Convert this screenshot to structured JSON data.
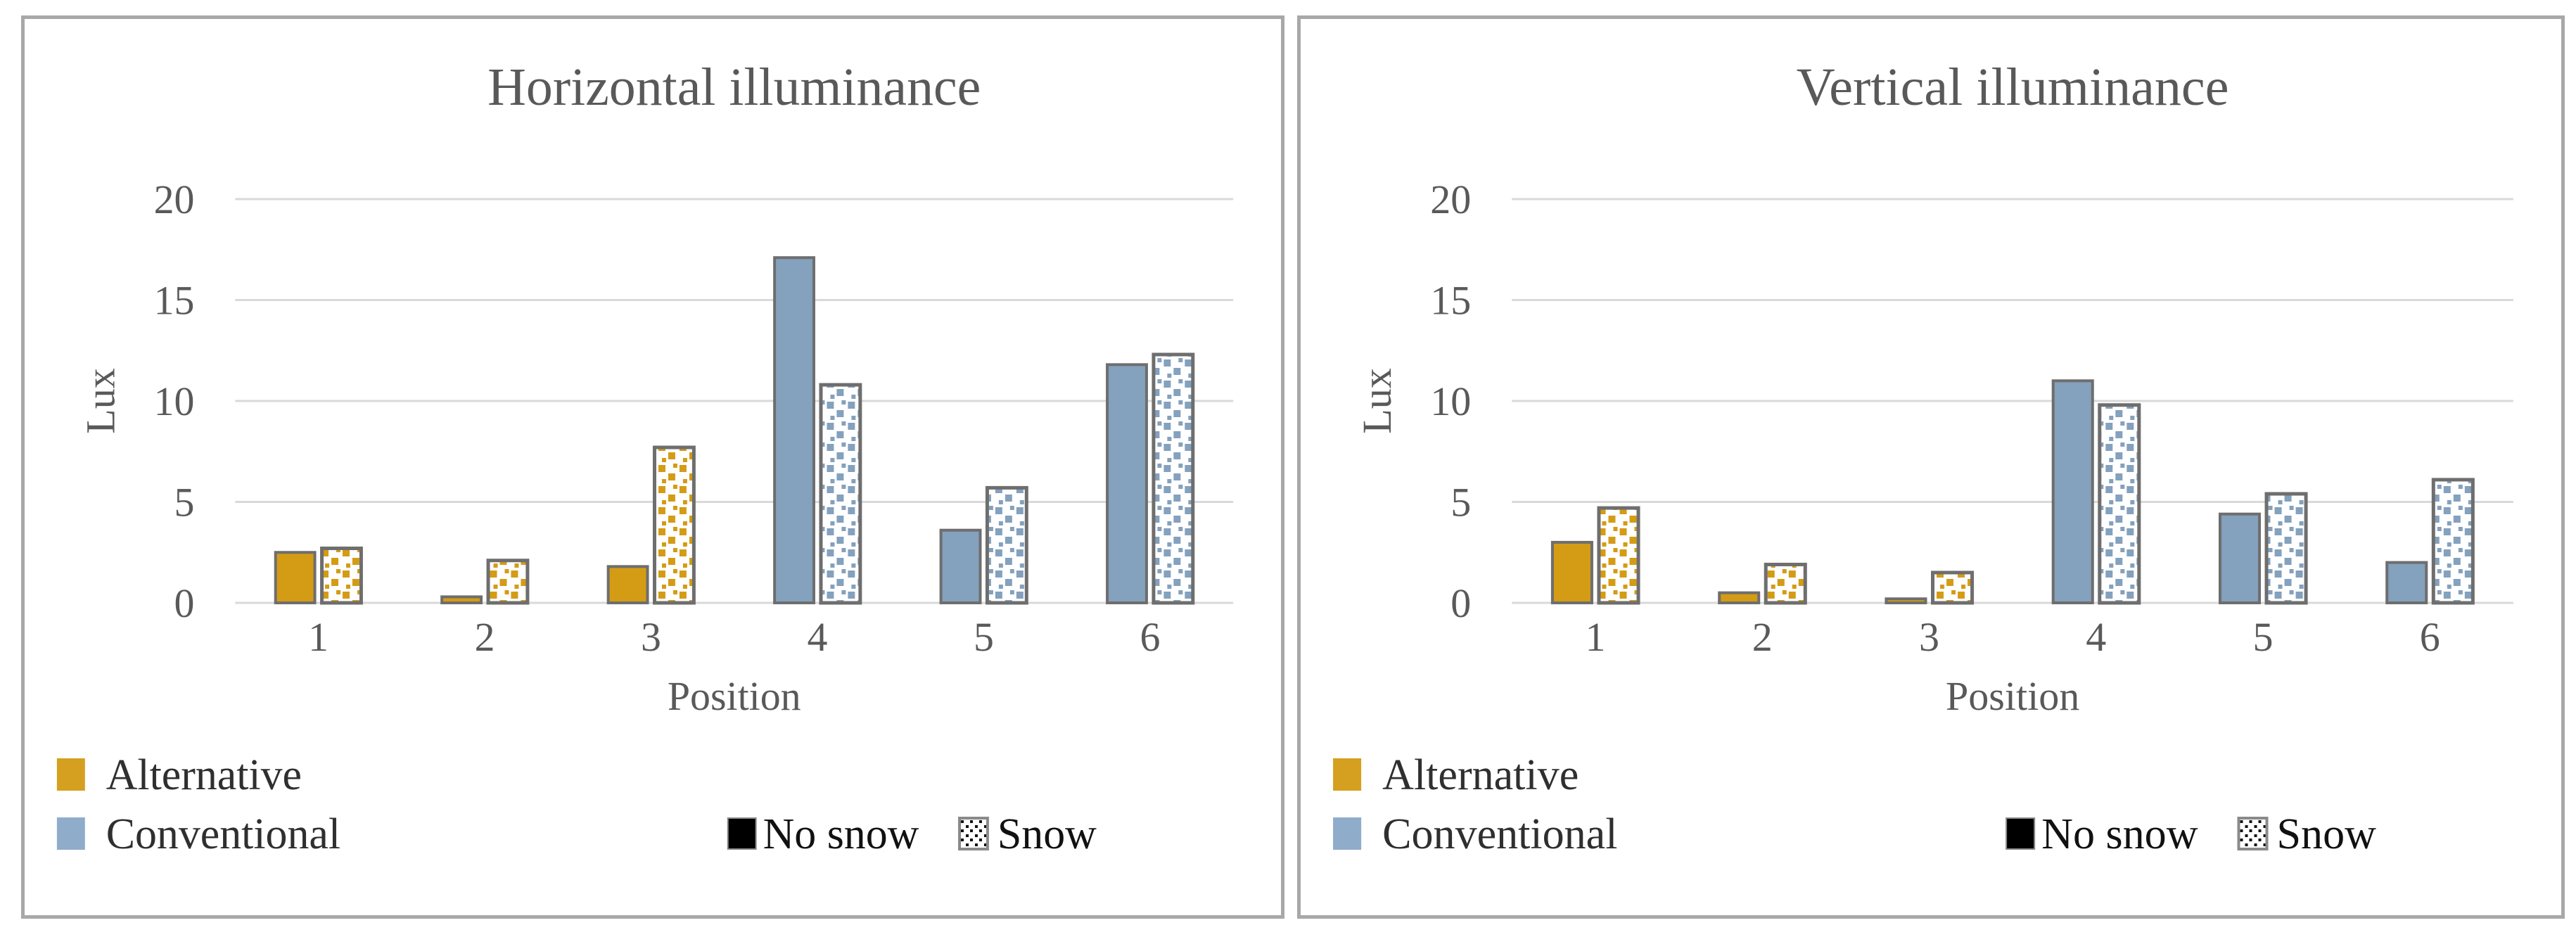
{
  "figure": {
    "background": "#ffffff",
    "panel_border_color": "#a8a8a8",
    "grid_color": "#d9d9d9",
    "axis_text_color": "#595959",
    "legend_text_color": "#2f2f2f",
    "bar_border_color": "#6e6e6e",
    "alternative_color": "#d49b15",
    "conventional_color": "#84a1bd",
    "legend_alternative_chip_color": "#d5a01f",
    "legend_conventional_chip_color": "#8faccb",
    "no_snow_chip_color": "#000000"
  },
  "chart_data": [
    {
      "type": "bar",
      "title": "Horizontal illuminance",
      "ylabel": "Lux",
      "xlabel": "Position",
      "categories": [
        "1",
        "2",
        "3",
        "4",
        "5",
        "6"
      ],
      "yticks": [
        "0",
        "5",
        "10",
        "15",
        "20"
      ],
      "ytick_values": [
        0,
        5,
        10,
        15,
        20
      ],
      "ylim": [
        0,
        20
      ],
      "grid": true,
      "legend_position": "bottom-left",
      "series": [
        {
          "name": "No snow",
          "pattern": "solid",
          "values": [
            2.5,
            0.3,
            1.8,
            17.1,
            3.6,
            11.8
          ]
        },
        {
          "name": "Snow",
          "pattern": "dotted",
          "values": [
            2.7,
            2.1,
            7.7,
            10.8,
            5.7,
            12.3
          ]
        }
      ],
      "category_color_groups": {
        "alternative_positions": [
          "1",
          "2",
          "3"
        ],
        "conventional_positions": [
          "4",
          "5",
          "6"
        ]
      },
      "color_legend": [
        {
          "label": "Alternative"
        },
        {
          "label": "Conventional"
        }
      ],
      "pattern_legend": [
        {
          "label": "No snow"
        },
        {
          "label": "Snow"
        }
      ]
    },
    {
      "type": "bar",
      "title": "Vertical illuminance",
      "ylabel": "Lux",
      "xlabel": "Position",
      "categories": [
        "1",
        "2",
        "3",
        "4",
        "5",
        "6"
      ],
      "yticks": [
        "0",
        "5",
        "10",
        "15",
        "20"
      ],
      "ytick_values": [
        0,
        5,
        10,
        15,
        20
      ],
      "ylim": [
        0,
        20
      ],
      "grid": true,
      "legend_position": "bottom-left",
      "series": [
        {
          "name": "No snow",
          "pattern": "solid",
          "values": [
            3.0,
            0.5,
            0.2,
            11.0,
            4.4,
            2.0
          ]
        },
        {
          "name": "Snow",
          "pattern": "dotted",
          "values": [
            4.7,
            1.9,
            1.5,
            9.8,
            5.4,
            6.1
          ]
        }
      ],
      "category_color_groups": {
        "alternative_positions": [
          "1",
          "2",
          "3"
        ],
        "conventional_positions": [
          "4",
          "5",
          "6"
        ]
      },
      "color_legend": [
        {
          "label": "Alternative"
        },
        {
          "label": "Conventional"
        }
      ],
      "pattern_legend": [
        {
          "label": "No snow"
        },
        {
          "label": "Snow"
        }
      ]
    }
  ]
}
